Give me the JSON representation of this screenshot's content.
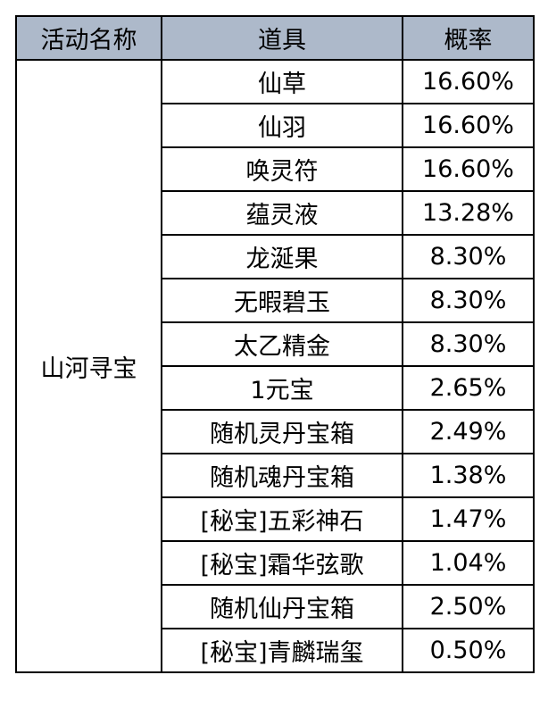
{
  "header": {
    "activity": "活动名称",
    "item": "道具",
    "probability": "概率"
  },
  "header_bg_color": "#adb9ca",
  "activity_name": "山河寻宝",
  "rows": [
    {
      "item": "仙草",
      "probability": "16.60%"
    },
    {
      "item": "仙羽",
      "probability": "16.60%"
    },
    {
      "item": "唤灵符",
      "probability": "16.60%"
    },
    {
      "item": "蕴灵液",
      "probability": "13.28%"
    },
    {
      "item": "龙涎果",
      "probability": "8.30%"
    },
    {
      "item": "无暇碧玉",
      "probability": "8.30%"
    },
    {
      "item": "太乙精金",
      "probability": "8.30%"
    },
    {
      "item": "1元宝",
      "probability": "2.65%"
    },
    {
      "item": "随机灵丹宝箱",
      "probability": "2.49%"
    },
    {
      "item": "随机魂丹宝箱",
      "probability": "1.38%"
    },
    {
      "item": "[秘宝]五彩神石",
      "probability": "1.47%"
    },
    {
      "item": "[秘宝]霜华弦歌",
      "probability": "1.04%"
    },
    {
      "item": "随机仙丹宝箱",
      "probability": "2.50%"
    },
    {
      "item": "[秘宝]青麟瑞玺",
      "probability": "0.50%"
    }
  ]
}
